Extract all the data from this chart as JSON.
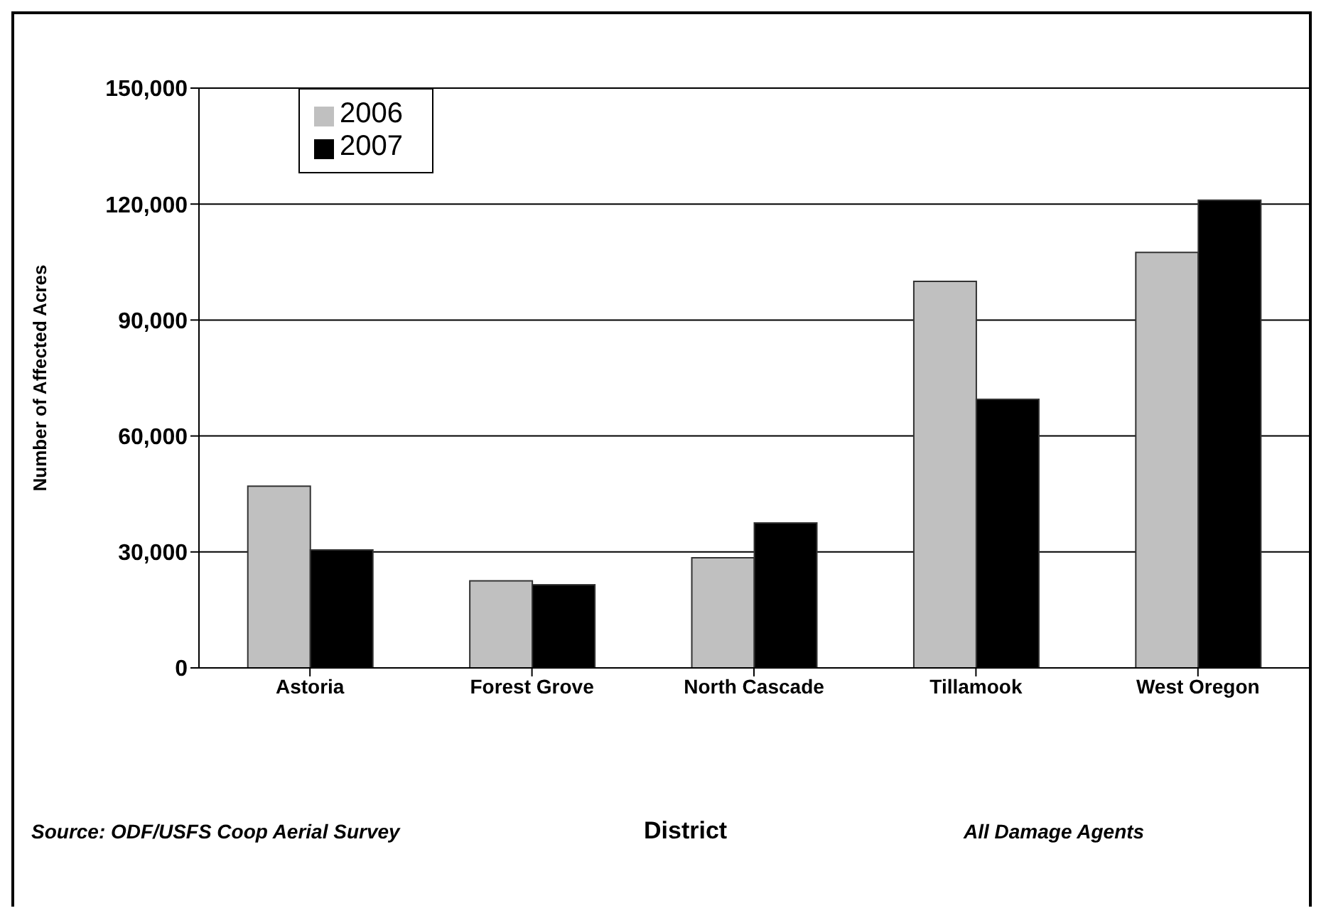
{
  "chart_data": {
    "type": "bar",
    "xlabel": "District",
    "ylabel": "Number of Affected Acres",
    "categories": [
      "Astoria",
      "Forest Grove",
      "North Cascade",
      "Tillamook",
      "West Oregon"
    ],
    "series": [
      {
        "name": "2006",
        "color": "#c0c0c0",
        "values": [
          47000,
          22500,
          28500,
          100000,
          107500
        ]
      },
      {
        "name": "2007",
        "color": "#000000",
        "values": [
          30500,
          21500,
          37500,
          69500,
          121000
        ]
      }
    ],
    "ylim": [
      0,
      150000
    ],
    "yticks": [
      {
        "value": 0,
        "label": "0"
      },
      {
        "value": 30000,
        "label": "30,000"
      },
      {
        "value": 60000,
        "label": "60,000"
      },
      {
        "value": 90000,
        "label": "90,000"
      },
      {
        "value": 120000,
        "label": "120,000"
      },
      {
        "value": 150000,
        "label": "150,000"
      }
    ],
    "grid": "y",
    "legend": "top left",
    "annotations": [
      "Source: ODF/USFS Coop Aerial Survey",
      "All Damage Agents"
    ]
  }
}
